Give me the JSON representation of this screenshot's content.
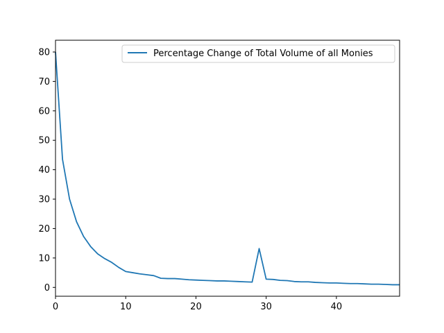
{
  "chart_data": {
    "type": "line",
    "title": "",
    "xlabel": "",
    "ylabel": "",
    "xlim": [
      0,
      49
    ],
    "ylim": [
      -3,
      84
    ],
    "x_ticks": [
      0,
      10,
      20,
      30,
      40
    ],
    "y_ticks": [
      0,
      10,
      20,
      30,
      40,
      50,
      60,
      70,
      80
    ],
    "grid": false,
    "legend_position": "top-right",
    "series": [
      {
        "name": "Percentage Change of Total Volume of all Monies",
        "color": "#1f77b4",
        "x": [
          0,
          1,
          2,
          3,
          4,
          5,
          6,
          7,
          8,
          9,
          10,
          11,
          12,
          13,
          14,
          15,
          16,
          17,
          18,
          19,
          20,
          21,
          22,
          23,
          24,
          25,
          26,
          27,
          28,
          29,
          30,
          31,
          32,
          33,
          34,
          35,
          36,
          37,
          38,
          39,
          40,
          41,
          42,
          43,
          44,
          45,
          46,
          47,
          48,
          49
        ],
        "y": [
          80,
          43.5,
          30,
          22.3,
          17.3,
          13.9,
          11.4,
          9.8,
          8.5,
          6.8,
          5.4,
          5.0,
          4.6,
          4.3,
          4.0,
          3.1,
          3.0,
          3.0,
          2.8,
          2.6,
          2.5,
          2.4,
          2.3,
          2.2,
          2.2,
          2.1,
          2.0,
          1.9,
          1.8,
          13.2,
          2.8,
          2.7,
          2.4,
          2.3,
          2.0,
          1.9,
          1.9,
          1.7,
          1.6,
          1.5,
          1.5,
          1.4,
          1.3,
          1.3,
          1.2,
          1.1,
          1.1,
          1.0,
          0.9,
          0.9
        ]
      }
    ]
  }
}
